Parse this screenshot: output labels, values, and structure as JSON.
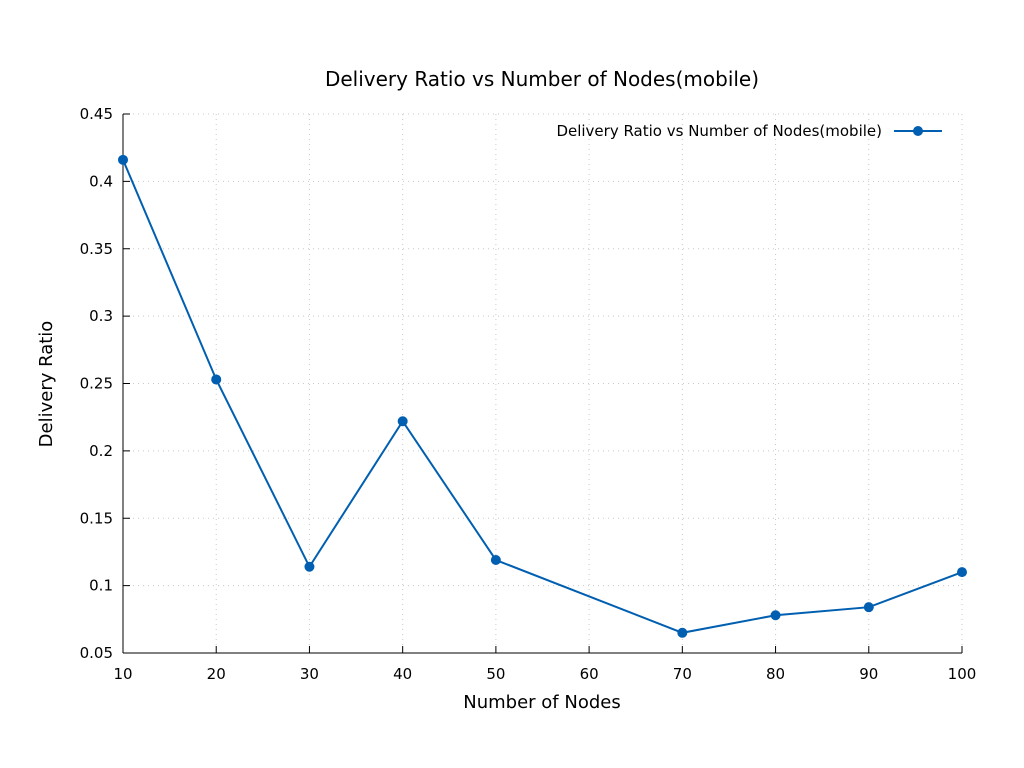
{
  "chart_data": {
    "type": "line",
    "title": "Delivery Ratio vs Number of Nodes(mobile)",
    "xlabel": "Number of Nodes",
    "ylabel": "Delivery Ratio",
    "xlim": [
      10,
      100
    ],
    "ylim": [
      0.05,
      0.45
    ],
    "x_ticks": [
      10,
      20,
      30,
      40,
      50,
      60,
      70,
      80,
      90,
      100
    ],
    "y_ticks": [
      0.05,
      0.1,
      0.15,
      0.2,
      0.25,
      0.3,
      0.35,
      0.4,
      0.45
    ],
    "x_tick_labels": [
      "10",
      "20",
      "30",
      "40",
      "50",
      "60",
      "70",
      "80",
      "90",
      "100"
    ],
    "y_tick_labels": [
      "0.05",
      "0.1",
      "0.15",
      "0.2",
      "0.25",
      "0.3",
      "0.35",
      "0.4",
      "0.45"
    ],
    "grid": true,
    "legend_position": "top-right",
    "series": [
      {
        "name": "Delivery Ratio vs Number of Nodes(mobile)",
        "color": "#005fb0",
        "marker": "circle",
        "x": [
          10,
          20,
          30,
          40,
          50,
          70,
          80,
          90,
          100
        ],
        "y": [
          0.416,
          0.253,
          0.114,
          0.222,
          0.119,
          0.065,
          0.078,
          0.084,
          0.11
        ]
      }
    ]
  }
}
